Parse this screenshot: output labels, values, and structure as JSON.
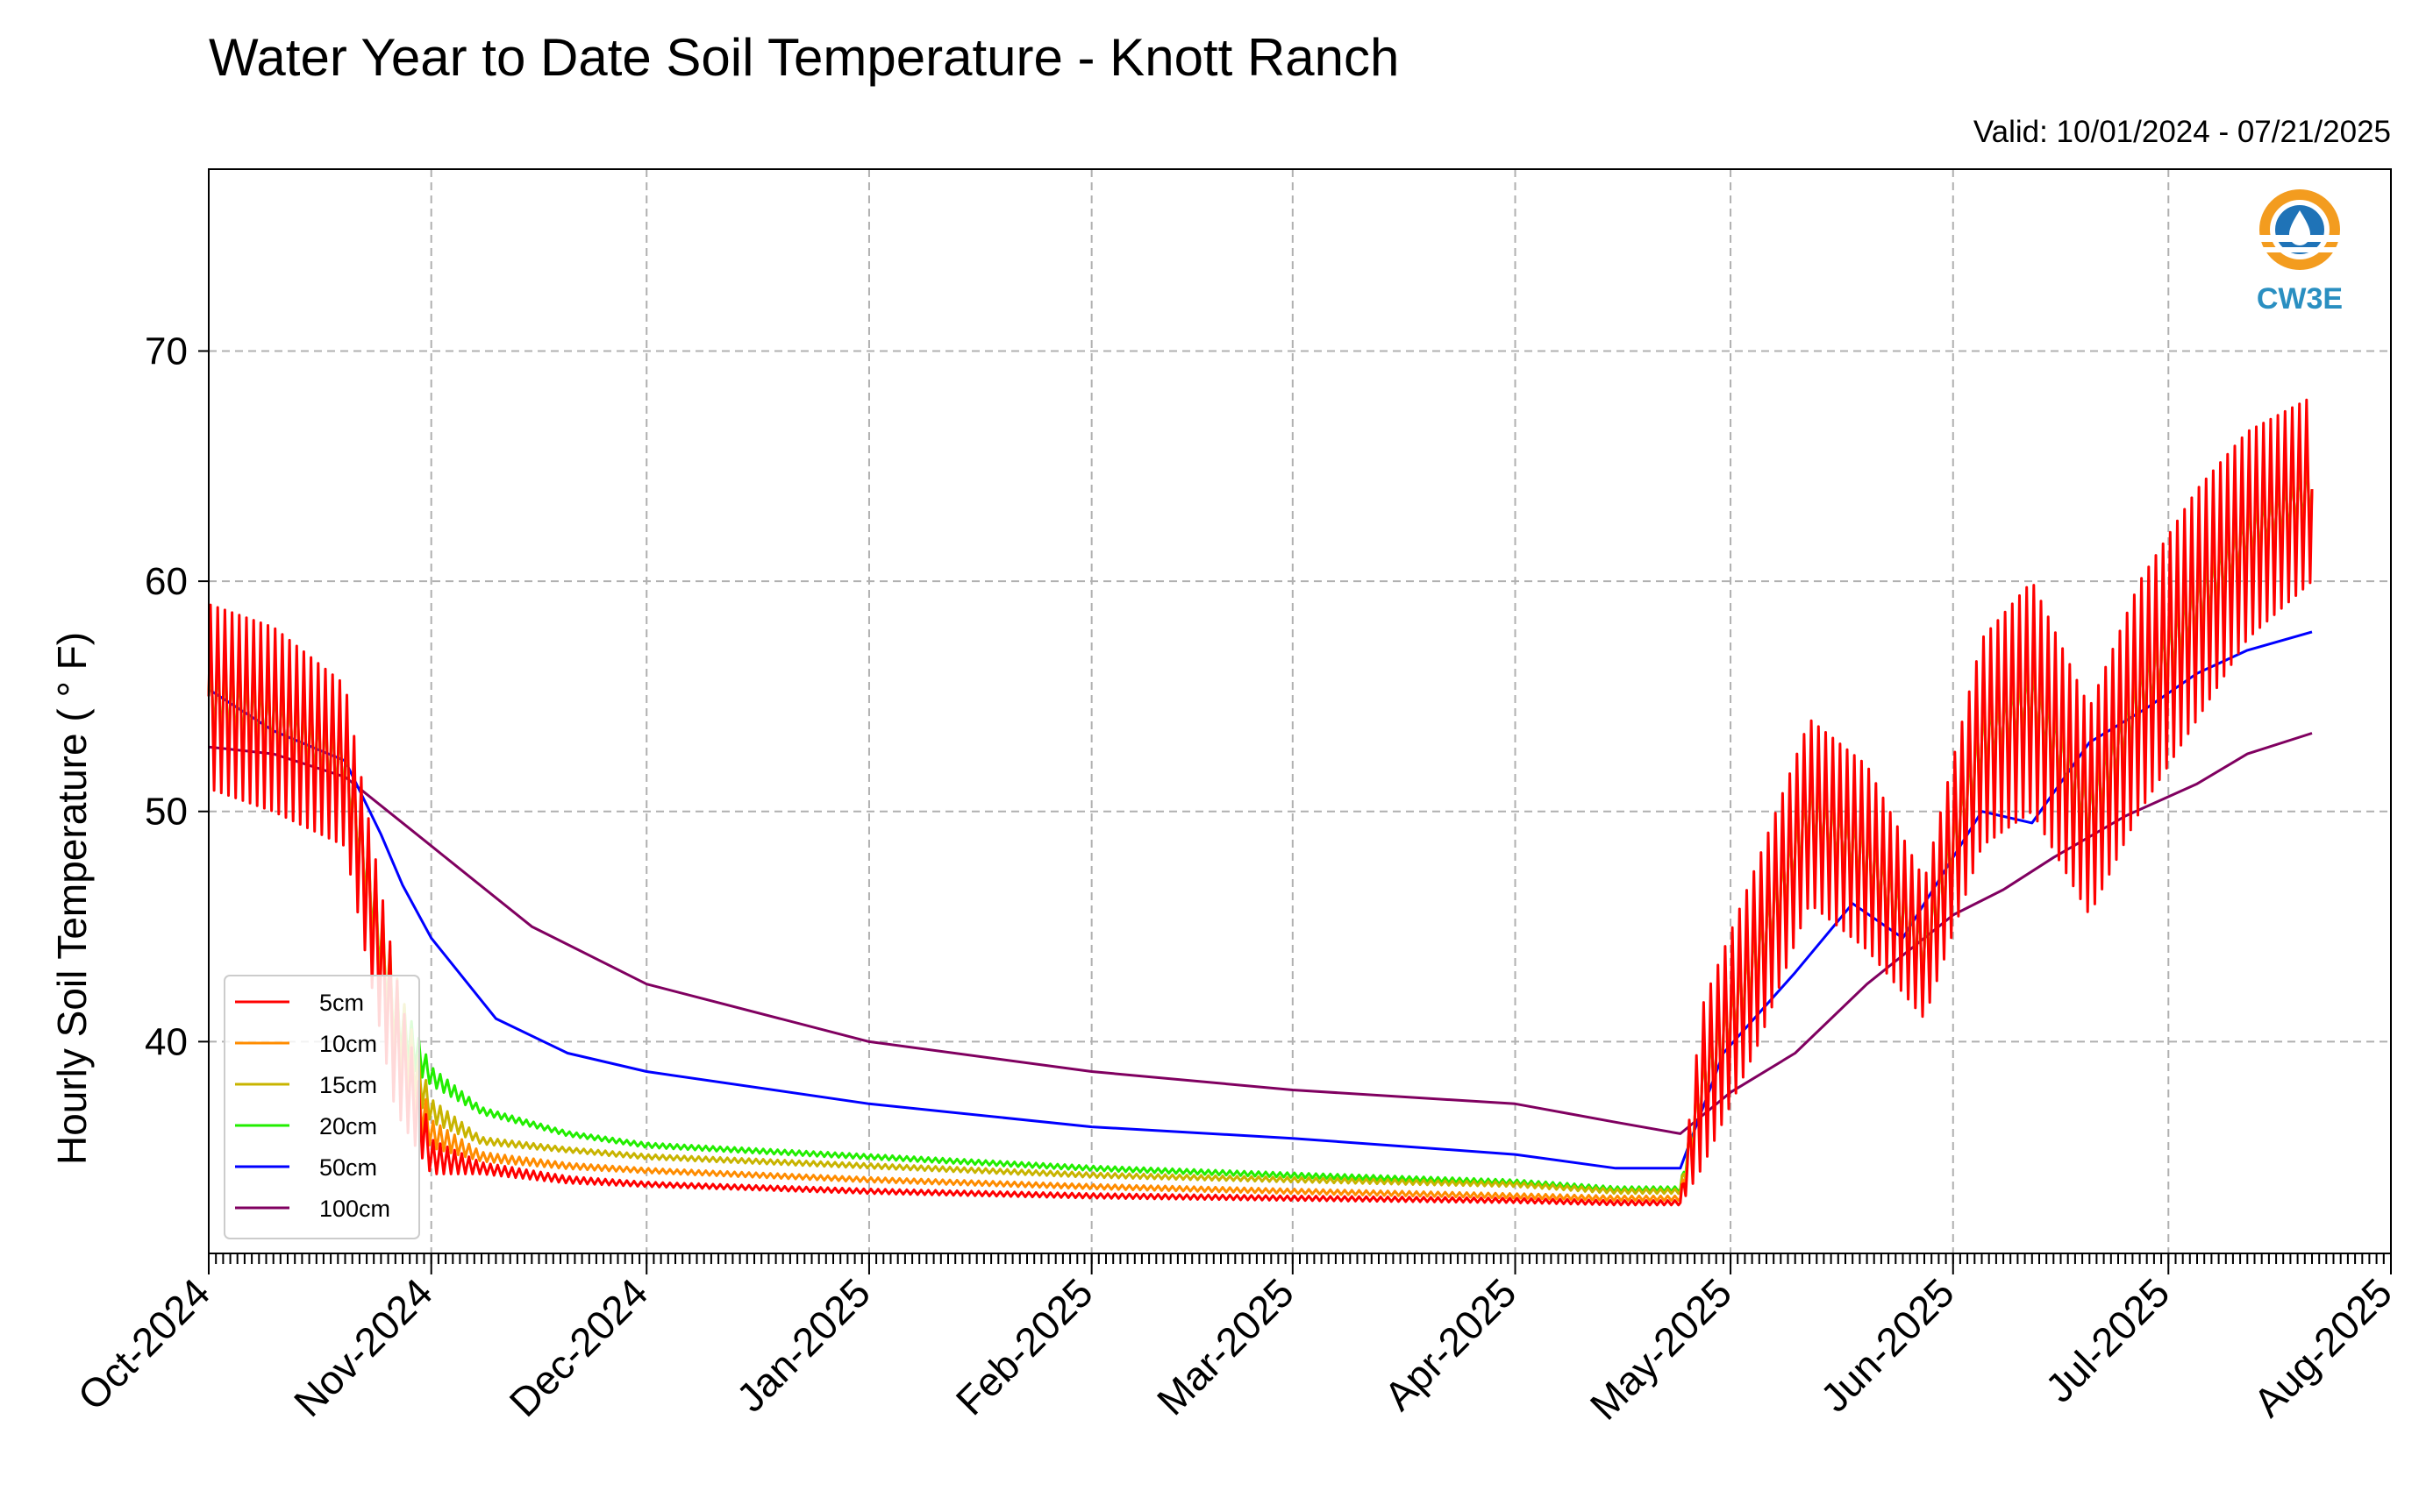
{
  "chart_data": {
    "type": "line",
    "title": "Water Year to Date Soil Temperature - Knott Ranch",
    "subtitle": "Valid: 10/01/2024 - 07/21/2025",
    "ylabel": "Hourly Soil Temperature ( ° F)",
    "xlabel": "",
    "ylim": [
      30.8,
      77.9
    ],
    "yticks": [
      40,
      50,
      60,
      70
    ],
    "x_range": [
      "2024-10-01",
      "2025-08-01"
    ],
    "xticks": [
      "Oct-2024",
      "Nov-2024",
      "Dec-2024",
      "Jan-2025",
      "Feb-2025",
      "Mar-2025",
      "Apr-2025",
      "May-2025",
      "Jun-2025",
      "Jul-2025",
      "Aug-2025"
    ],
    "xtick_dates": [
      "2024-10-01",
      "2024-11-01",
      "2024-12-01",
      "2025-01-01",
      "2025-02-01",
      "2025-03-01",
      "2025-04-01",
      "2025-05-01",
      "2025-06-01",
      "2025-07-01",
      "2025-08-01"
    ],
    "grid": true,
    "legend_position": "lower-left",
    "logo": "CW3E",
    "series": [
      {
        "name": "5cm",
        "color": "#ff0000",
        "x": [
          "2024-10-01",
          "2024-10-10",
          "2024-10-20",
          "2024-10-27",
          "2024-11-01",
          "2024-11-08",
          "2024-11-20",
          "2024-12-01",
          "2025-01-01",
          "2025-02-01",
          "2025-03-01",
          "2025-04-01",
          "2025-04-15",
          "2025-04-24",
          "2025-04-27",
          "2025-05-05",
          "2025-05-12",
          "2025-05-20",
          "2025-05-28",
          "2025-06-05",
          "2025-06-12",
          "2025-06-20",
          "2025-06-27",
          "2025-07-05",
          "2025-07-12",
          "2025-07-21"
        ],
        "y": [
          55,
          54,
          52,
          40,
          35,
          34.5,
          34,
          33.8,
          33.5,
          33.3,
          33.2,
          33.1,
          33,
          33,
          38,
          44,
          50,
          48,
          44,
          53,
          55,
          50,
          55,
          59,
          62,
          64
        ],
        "amplitude": [
          8,
          8,
          7,
          6,
          1.5,
          0.5,
          0.3,
          0.2,
          0.2,
          0.2,
          0.2,
          0.2,
          0.2,
          0.2,
          7,
          8,
          8,
          8,
          6,
          9,
          10,
          9,
          10,
          10,
          9,
          8
        ]
      },
      {
        "name": "10cm",
        "color": "#ff8c00",
        "x": [
          "2024-10-01",
          "2024-10-10",
          "2024-10-20",
          "2024-10-27",
          "2024-11-01",
          "2024-11-08",
          "2024-11-20",
          "2024-12-01",
          "2025-01-01",
          "2025-02-01",
          "2025-03-01",
          "2025-04-01",
          "2025-04-15",
          "2025-04-24",
          "2025-04-27",
          "2025-05-05",
          "2025-05-12",
          "2025-05-20",
          "2025-05-28",
          "2025-06-05",
          "2025-06-12",
          "2025-06-20",
          "2025-06-27",
          "2025-07-05",
          "2025-07-12",
          "2025-07-21"
        ],
        "y": [
          55,
          54,
          52,
          40,
          36,
          35,
          34.6,
          34.4,
          34,
          33.7,
          33.5,
          33.3,
          33.2,
          33.2,
          38,
          44,
          50,
          48,
          44,
          53,
          55,
          50,
          55,
          59,
          62,
          64
        ],
        "amplitude": [
          6,
          6,
          5,
          5,
          1.2,
          0.4,
          0.25,
          0.2,
          0.2,
          0.2,
          0.2,
          0.2,
          0.2,
          0.2,
          5,
          6,
          6,
          6,
          5,
          7,
          7,
          7,
          7,
          7,
          6,
          6
        ]
      },
      {
        "name": "15cm",
        "color": "#c8b400",
        "x": [
          "2024-10-01",
          "2024-10-10",
          "2024-10-20",
          "2024-10-27",
          "2024-11-01",
          "2024-11-08",
          "2024-11-20",
          "2024-12-01",
          "2025-01-01",
          "2025-02-01",
          "2025-03-01",
          "2025-04-01",
          "2025-04-15",
          "2025-04-24",
          "2025-04-27",
          "2025-05-05",
          "2025-05-12",
          "2025-05-20",
          "2025-05-28",
          "2025-06-05",
          "2025-06-12",
          "2025-06-20",
          "2025-06-27",
          "2025-07-05",
          "2025-07-12",
          "2025-07-21"
        ],
        "y": [
          55,
          54,
          52,
          41,
          37,
          35.7,
          35.3,
          35,
          34.6,
          34.2,
          34,
          33.8,
          33.5,
          33.5,
          38,
          44,
          50,
          48,
          44,
          53,
          55,
          50,
          55,
          59,
          62,
          64
        ],
        "amplitude": [
          4.5,
          4.5,
          4,
          4,
          1,
          0.3,
          0.2,
          0.2,
          0.2,
          0.2,
          0.2,
          0.2,
          0.2,
          0.2,
          4,
          4.5,
          4.5,
          4.5,
          4,
          5,
          5,
          5,
          5,
          5,
          4.5,
          4.5
        ]
      },
      {
        "name": "20cm",
        "color": "#22ee00",
        "x": [
          "2024-10-01",
          "2024-10-10",
          "2024-10-20",
          "2024-10-27",
          "2024-11-01",
          "2024-11-08",
          "2024-11-20",
          "2024-12-01",
          "2025-01-01",
          "2025-02-01",
          "2025-03-01",
          "2025-04-01",
          "2025-04-15",
          "2025-04-24",
          "2025-04-27",
          "2025-05-05",
          "2025-05-12",
          "2025-05-20",
          "2025-05-28",
          "2025-06-05",
          "2025-06-12",
          "2025-06-20",
          "2025-06-27",
          "2025-07-05",
          "2025-07-12",
          "2025-07-21"
        ],
        "y": [
          55,
          54,
          52,
          41,
          38.5,
          37,
          36,
          35.5,
          35,
          34.5,
          34.2,
          33.9,
          33.6,
          33.6,
          38,
          44,
          50,
          48,
          44,
          53,
          55,
          50,
          55,
          59,
          62,
          64
        ],
        "amplitude": [
          3.5,
          3.5,
          3,
          3,
          0.8,
          0.3,
          0.2,
          0.2,
          0.2,
          0.2,
          0.2,
          0.2,
          0.2,
          0.2,
          3,
          3.5,
          3.5,
          3.5,
          3,
          3.5,
          3.5,
          3.5,
          3.5,
          3.5,
          3,
          3
        ]
      },
      {
        "name": "50cm",
        "color": "#0000ff",
        "x": [
          "2024-10-01",
          "2024-10-10",
          "2024-10-20",
          "2024-10-25",
          "2024-10-28",
          "2024-11-01",
          "2024-11-10",
          "2024-11-20",
          "2024-12-01",
          "2025-01-01",
          "2025-02-01",
          "2025-03-01",
          "2025-04-01",
          "2025-04-15",
          "2025-04-24",
          "2025-04-30",
          "2025-05-10",
          "2025-05-18",
          "2025-05-25",
          "2025-06-05",
          "2025-06-12",
          "2025-06-20",
          "2025-06-28",
          "2025-07-05",
          "2025-07-12",
          "2025-07-21"
        ],
        "y": [
          55.3,
          53.5,
          52.2,
          49,
          46.8,
          44.5,
          41,
          39.5,
          38.7,
          37.3,
          36.3,
          35.8,
          35.1,
          34.5,
          34.5,
          39.5,
          43,
          46,
          44.5,
          50,
          49.5,
          53,
          54.5,
          56,
          57,
          57.8
        ]
      },
      {
        "name": "100cm",
        "color": "#800060",
        "x": [
          "2024-10-01",
          "2024-10-10",
          "2024-10-20",
          "2024-11-01",
          "2024-11-15",
          "2024-12-01",
          "2025-01-01",
          "2025-02-01",
          "2025-03-01",
          "2025-04-01",
          "2025-04-15",
          "2025-04-24",
          "2025-05-01",
          "2025-05-10",
          "2025-05-20",
          "2025-06-01",
          "2025-06-08",
          "2025-06-15",
          "2025-06-25",
          "2025-07-05",
          "2025-07-12",
          "2025-07-21"
        ],
        "y": [
          52.8,
          52.5,
          51.5,
          48.5,
          45,
          42.5,
          40,
          38.7,
          37.9,
          37.3,
          36.5,
          36,
          37.8,
          39.5,
          42.5,
          45.5,
          46.6,
          48,
          49.8,
          51.2,
          52.5,
          53.4
        ]
      }
    ]
  }
}
